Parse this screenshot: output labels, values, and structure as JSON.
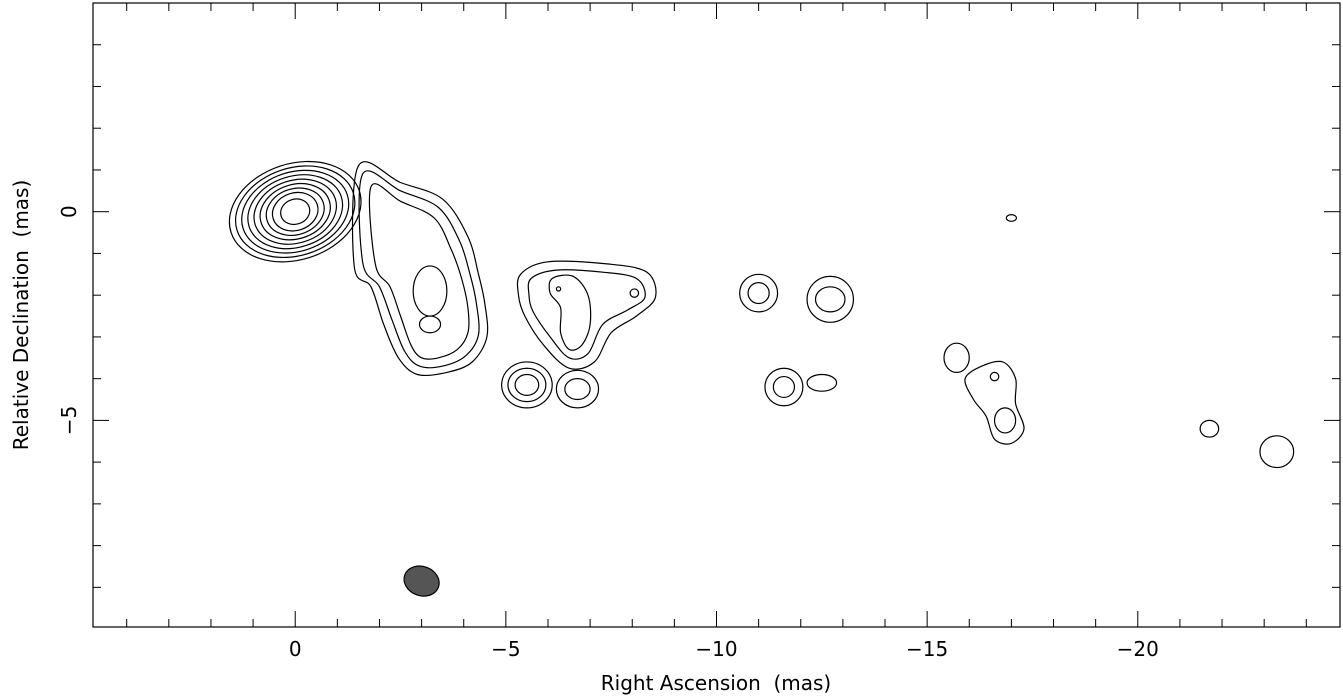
{
  "chart_data": {
    "type": "contour",
    "xlabel": "Right Ascension  (mas)",
    "ylabel": "Relative Declination  (mas)",
    "xlim": [
      4.8,
      -24.8
    ],
    "ylim": [
      -9.95,
      5.0
    ],
    "x_ticks_major": [
      0,
      -5,
      -10,
      -15,
      -20
    ],
    "x_tick_labels": [
      "0",
      "−5",
      "−10",
      "−15",
      "−20"
    ],
    "x_ticks_minor": [
      4,
      3,
      2,
      1,
      -1,
      -2,
      -3,
      -4,
      -6,
      -7,
      -8,
      -9,
      -11,
      -12,
      -13,
      -14,
      -16,
      -17,
      -18,
      -19,
      -21,
      -22,
      -23,
      -24
    ],
    "y_ticks_major": [
      0,
      -5
    ],
    "y_tick_labels": [
      "0",
      "−5"
    ],
    "y_ticks_minor": [
      4,
      3,
      2,
      1,
      -1,
      -2,
      -3,
      -4,
      -6,
      -7,
      -8,
      -9
    ],
    "grid": false,
    "beam": {
      "x": -3.0,
      "y": -8.85,
      "major": 0.85,
      "minor": 0.7,
      "color": "#555555"
    },
    "components": [
      {
        "name": "core",
        "x": 0.0,
        "y": 0.0,
        "rx": [
          0.35,
          0.55,
          0.7,
          0.85,
          1.0,
          1.15,
          1.3,
          1.45,
          1.6
        ],
        "ry": [
          0.3,
          0.45,
          0.55,
          0.65,
          0.75,
          0.85,
          0.95,
          1.05,
          1.15
        ]
      },
      {
        "name": "jet-knot-a",
        "x": -3.2,
        "y": -2.7,
        "rx": [
          0.25
        ],
        "ry": [
          0.2
        ]
      },
      {
        "name": "jet-knot-b",
        "x": -3.2,
        "y": -1.9,
        "rx": [
          0.4
        ],
        "ry": [
          0.6
        ]
      },
      {
        "name": "jet-knot-c",
        "x": -6.25,
        "y": -1.85,
        "rx": [
          0.05
        ],
        "ry": [
          0.05
        ]
      },
      {
        "name": "jet-knot-d",
        "x": -8.05,
        "y": -1.95,
        "rx": [
          0.1
        ],
        "ry": [
          0.1
        ]
      },
      {
        "name": "blob-5.5",
        "x": -5.5,
        "y": -4.15,
        "rx": [
          0.28,
          0.45,
          0.6
        ],
        "ry": [
          0.25,
          0.4,
          0.55
        ]
      },
      {
        "name": "blob-6.7",
        "x": -6.7,
        "y": -4.25,
        "rx": [
          0.3,
          0.5
        ],
        "ry": [
          0.25,
          0.45
        ]
      },
      {
        "name": "blob-11.0",
        "x": -11.0,
        "y": -1.95,
        "rx": [
          0.25,
          0.45
        ],
        "ry": [
          0.25,
          0.45
        ]
      },
      {
        "name": "blob-12.7",
        "x": -12.7,
        "y": -2.1,
        "rx": [
          0.35,
          0.55
        ],
        "ry": [
          0.3,
          0.55
        ]
      },
      {
        "name": "blob-11.6",
        "x": -11.6,
        "y": -4.2,
        "rx": [
          0.25,
          0.45
        ],
        "ry": [
          0.25,
          0.45
        ]
      },
      {
        "name": "blob-12.5",
        "x": -12.5,
        "y": -4.1,
        "rx": [
          0.35
        ],
        "ry": [
          0.2
        ]
      },
      {
        "name": "blob-15.7",
        "x": -15.7,
        "y": -3.5,
        "rx": [
          0.3
        ],
        "ry": [
          0.35
        ]
      },
      {
        "name": "blob-16.6",
        "x": -16.6,
        "y": -3.95,
        "rx": [
          0.1
        ],
        "ry": [
          0.1
        ]
      },
      {
        "name": "blob-16.85",
        "x": -16.85,
        "y": -5.0,
        "rx": [
          0.25
        ],
        "ry": [
          0.3
        ]
      },
      {
        "name": "blob-17.0",
        "x": -17.0,
        "y": -0.15,
        "rx": [
          0.12
        ],
        "ry": [
          0.08
        ]
      },
      {
        "name": "blob-21.7",
        "x": -21.7,
        "y": -5.2,
        "rx": [
          0.22
        ],
        "ry": [
          0.2
        ]
      },
      {
        "name": "blob-23.3",
        "x": -23.3,
        "y": -5.75,
        "rx": [
          0.4
        ],
        "ry": [
          0.38
        ]
      }
    ],
    "extended_contours": [
      {
        "name": "jet-envelope-1",
        "points": [
          [
            -1.5,
            1.1
          ],
          [
            -2.5,
            0.7
          ],
          [
            -3.5,
            0.3
          ],
          [
            -4.1,
            -0.6
          ],
          [
            -4.35,
            -1.5
          ],
          [
            -4.5,
            -2.2
          ],
          [
            -4.55,
            -3.0
          ],
          [
            -4.2,
            -3.6
          ],
          [
            -3.6,
            -3.85
          ],
          [
            -2.9,
            -3.9
          ],
          [
            -2.45,
            -3.5
          ],
          [
            -2.1,
            -2.7
          ],
          [
            -1.8,
            -1.8
          ],
          [
            -1.4,
            -1.3
          ]
        ]
      },
      {
        "name": "jet-envelope-2",
        "points": [
          [
            -1.6,
            0.9
          ],
          [
            -2.5,
            0.5
          ],
          [
            -3.4,
            0.1
          ],
          [
            -3.9,
            -0.7
          ],
          [
            -4.15,
            -1.5
          ],
          [
            -4.3,
            -2.2
          ],
          [
            -4.35,
            -2.95
          ],
          [
            -4.05,
            -3.45
          ],
          [
            -3.5,
            -3.7
          ],
          [
            -2.95,
            -3.7
          ],
          [
            -2.6,
            -3.35
          ],
          [
            -2.3,
            -2.6
          ],
          [
            -2.0,
            -1.8
          ],
          [
            -1.6,
            -1.2
          ]
        ]
      },
      {
        "name": "jet-envelope-3",
        "points": [
          [
            -1.8,
            0.6
          ],
          [
            -2.5,
            0.25
          ],
          [
            -3.3,
            -0.15
          ],
          [
            -3.7,
            -0.9
          ],
          [
            -3.95,
            -1.6
          ],
          [
            -4.1,
            -2.3
          ],
          [
            -4.1,
            -2.9
          ],
          [
            -3.85,
            -3.3
          ],
          [
            -3.4,
            -3.5
          ],
          [
            -3.0,
            -3.5
          ],
          [
            -2.75,
            -3.2
          ],
          [
            -2.5,
            -2.5
          ],
          [
            -2.25,
            -1.8
          ],
          [
            -1.9,
            -1.25
          ]
        ]
      },
      {
        "name": "knot-group-1",
        "points": [
          [
            -5.35,
            -1.5
          ],
          [
            -6.0,
            -1.2
          ],
          [
            -7.4,
            -1.25
          ],
          [
            -8.35,
            -1.45
          ],
          [
            -8.55,
            -2.05
          ],
          [
            -8.1,
            -2.5
          ],
          [
            -7.5,
            -2.9
          ],
          [
            -7.1,
            -3.6
          ],
          [
            -6.5,
            -3.75
          ],
          [
            -5.9,
            -3.2
          ],
          [
            -5.45,
            -2.5
          ],
          [
            -5.3,
            -2.0
          ]
        ]
      },
      {
        "name": "knot-group-2",
        "points": [
          [
            -5.6,
            -1.6
          ],
          [
            -6.2,
            -1.4
          ],
          [
            -7.3,
            -1.45
          ],
          [
            -8.1,
            -1.6
          ],
          [
            -8.3,
            -2.05
          ],
          [
            -7.9,
            -2.35
          ],
          [
            -7.3,
            -2.7
          ],
          [
            -6.95,
            -3.4
          ],
          [
            -6.5,
            -3.5
          ],
          [
            -6.05,
            -3.0
          ],
          [
            -5.65,
            -2.4
          ],
          [
            -5.55,
            -2.0
          ]
        ]
      },
      {
        "name": "knot-group-3",
        "points": [
          [
            -6.1,
            -1.6
          ],
          [
            -6.6,
            -1.55
          ],
          [
            -6.95,
            -2.0
          ],
          [
            -7.0,
            -2.7
          ],
          [
            -6.8,
            -3.2
          ],
          [
            -6.5,
            -3.3
          ],
          [
            -6.3,
            -2.9
          ],
          [
            -6.3,
            -2.3
          ],
          [
            -6.05,
            -1.95
          ]
        ]
      },
      {
        "name": "group-16.5",
        "points": [
          [
            -15.9,
            -4.0
          ],
          [
            -16.3,
            -3.7
          ],
          [
            -16.8,
            -3.6
          ],
          [
            -17.1,
            -4.0
          ],
          [
            -17.1,
            -4.6
          ],
          [
            -17.3,
            -5.2
          ],
          [
            -17.0,
            -5.55
          ],
          [
            -16.6,
            -5.45
          ],
          [
            -16.4,
            -4.9
          ],
          [
            -16.1,
            -4.5
          ]
        ]
      }
    ]
  }
}
